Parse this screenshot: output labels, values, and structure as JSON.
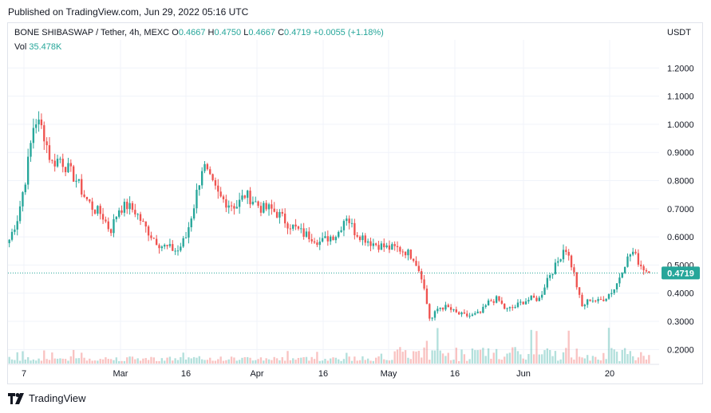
{
  "published": "Published on TradingView.com, Jun 29, 2022 05:16 UTC",
  "legend": {
    "symbol": "BONE SHIBASWAP / Tether, 4h, MEXC",
    "o_label": "O",
    "o_value": "0.4667",
    "h_label": "H",
    "h_value": "0.4750",
    "l_label": "L",
    "l_value": "0.4667",
    "c_label": "C",
    "c_value": "0.4719",
    "change": "+0.0055 (+1.18%)",
    "vol_label": "Vol",
    "vol_value": "35.478K"
  },
  "currency": "USDT",
  "brand": "TradingView",
  "colors": {
    "up": "#26a69a",
    "down": "#ef5350",
    "grid": "#f0f3fa",
    "last_price_bg": "#26a69a"
  },
  "chart_data": {
    "type": "candlestick",
    "interval": "4h",
    "ylim": [
      0.15,
      1.3
    ],
    "y_ticks": [
      "1.2000",
      "1.1000",
      "1.0000",
      "0.9000",
      "0.8000",
      "0.7000",
      "0.6000",
      "0.5000",
      "0.4000",
      "0.3000",
      "0.2000"
    ],
    "x_ticks": [
      "7",
      "Mar",
      "16",
      "Apr",
      "16",
      "May",
      "16",
      "Jun",
      "20"
    ],
    "last_price": "0.4719",
    "close_series": [
      {
        "x": "Feb 5",
        "y": 0.59
      },
      {
        "x": "Feb 6",
        "y": 0.67
      },
      {
        "x": "Feb 7",
        "y": 0.82
      },
      {
        "x": "Feb 8",
        "y": 1.02
      },
      {
        "x": "Feb 9",
        "y": 0.98
      },
      {
        "x": "Feb 10",
        "y": 0.86
      },
      {
        "x": "Feb 12",
        "y": 0.88
      },
      {
        "x": "Feb 14",
        "y": 0.84
      },
      {
        "x": "Feb 16",
        "y": 0.8
      },
      {
        "x": "Feb 18",
        "y": 0.74
      },
      {
        "x": "Feb 20",
        "y": 0.7
      },
      {
        "x": "Feb 22",
        "y": 0.68
      },
      {
        "x": "Feb 24",
        "y": 0.62
      },
      {
        "x": "Feb 26",
        "y": 0.7
      },
      {
        "x": "Feb 28",
        "y": 0.71
      },
      {
        "x": "Mar 2",
        "y": 0.69
      },
      {
        "x": "Mar 4",
        "y": 0.64
      },
      {
        "x": "Mar 6",
        "y": 0.6
      },
      {
        "x": "Mar 8",
        "y": 0.57
      },
      {
        "x": "Mar 10",
        "y": 0.56
      },
      {
        "x": "Mar 12",
        "y": 0.55
      },
      {
        "x": "Mar 14",
        "y": 0.6
      },
      {
        "x": "Mar 16",
        "y": 0.72
      },
      {
        "x": "Mar 18",
        "y": 0.86
      },
      {
        "x": "Mar 20",
        "y": 0.79
      },
      {
        "x": "Mar 22",
        "y": 0.74
      },
      {
        "x": "Mar 24",
        "y": 0.72
      },
      {
        "x": "Mar 26",
        "y": 0.71
      },
      {
        "x": "Mar 28",
        "y": 0.75
      },
      {
        "x": "Mar 30",
        "y": 0.73
      },
      {
        "x": "Apr 1",
        "y": 0.7
      },
      {
        "x": "Apr 3",
        "y": 0.7
      },
      {
        "x": "Apr 5",
        "y": 0.68
      },
      {
        "x": "Apr 7",
        "y": 0.65
      },
      {
        "x": "Apr 9",
        "y": 0.63
      },
      {
        "x": "Apr 11",
        "y": 0.61
      },
      {
        "x": "Apr 13",
        "y": 0.6
      },
      {
        "x": "Apr 15",
        "y": 0.58
      },
      {
        "x": "Apr 17",
        "y": 0.6
      },
      {
        "x": "Apr 19",
        "y": 0.61
      },
      {
        "x": "Apr 21",
        "y": 0.68
      },
      {
        "x": "Apr 23",
        "y": 0.62
      },
      {
        "x": "Apr 25",
        "y": 0.6
      },
      {
        "x": "Apr 27",
        "y": 0.58
      },
      {
        "x": "Apr 29",
        "y": 0.57
      },
      {
        "x": "May 1",
        "y": 0.56
      },
      {
        "x": "May 3",
        "y": 0.56
      },
      {
        "x": "May 5",
        "y": 0.55
      },
      {
        "x": "May 7",
        "y": 0.53
      },
      {
        "x": "May 9",
        "y": 0.46
      },
      {
        "x": "May 10",
        "y": 0.3
      },
      {
        "x": "May 11",
        "y": 0.35
      },
      {
        "x": "May 13",
        "y": 0.35
      },
      {
        "x": "May 15",
        "y": 0.33
      },
      {
        "x": "May 17",
        "y": 0.32
      },
      {
        "x": "May 19",
        "y": 0.32
      },
      {
        "x": "May 21",
        "y": 0.33
      },
      {
        "x": "May 23",
        "y": 0.37
      },
      {
        "x": "May 25",
        "y": 0.38
      },
      {
        "x": "May 27",
        "y": 0.34
      },
      {
        "x": "May 29",
        "y": 0.35
      },
      {
        "x": "May 31",
        "y": 0.37
      },
      {
        "x": "Jun 2",
        "y": 0.38
      },
      {
        "x": "Jun 4",
        "y": 0.38
      },
      {
        "x": "Jun 6",
        "y": 0.46
      },
      {
        "x": "Jun 8",
        "y": 0.5
      },
      {
        "x": "Jun 9",
        "y": 0.57
      },
      {
        "x": "Jun 11",
        "y": 0.48
      },
      {
        "x": "Jun 13",
        "y": 0.35
      },
      {
        "x": "Jun 15",
        "y": 0.38
      },
      {
        "x": "Jun 17",
        "y": 0.37
      },
      {
        "x": "Jun 19",
        "y": 0.39
      },
      {
        "x": "Jun 21",
        "y": 0.42
      },
      {
        "x": "Jun 23",
        "y": 0.5
      },
      {
        "x": "Jun 25",
        "y": 0.55
      },
      {
        "x": "Jun 27",
        "y": 0.5
      },
      {
        "x": "Jun 29",
        "y": 0.4719
      }
    ],
    "volume_note": "per-bar volume histogram, volume shown 35.478K for last bar"
  }
}
